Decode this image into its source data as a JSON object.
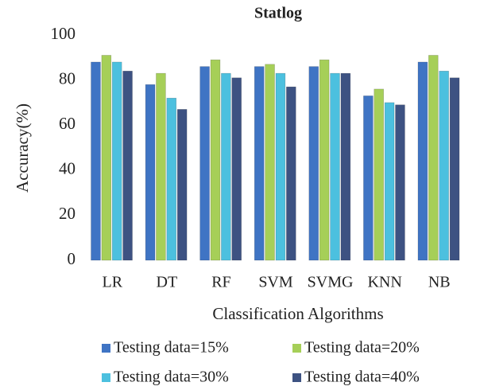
{
  "chart_data": {
    "type": "bar",
    "title": "Statlog",
    "x_label": "Classification Algorithms",
    "y_label": "Accuracy(%)",
    "categories": [
      "LR",
      "DT",
      "RF",
      "SVM",
      "SVMG",
      "KNN",
      "NB"
    ],
    "series": [
      {
        "name": "Testing data=15%",
        "color": "#3f74c4",
        "values": [
          88,
          78,
          86,
          86,
          86,
          73,
          88
        ]
      },
      {
        "name": "Testing data=20%",
        "color": "#a6cf58",
        "values": [
          91,
          83,
          89,
          87,
          89,
          76,
          91
        ]
      },
      {
        "name": "Testing data=30%",
        "color": "#4cc0df",
        "values": [
          88,
          72,
          83,
          83,
          83,
          70,
          84
        ]
      },
      {
        "name": "Testing data=40%",
        "color": "#3d5282",
        "values": [
          84,
          67,
          81,
          77,
          83,
          69,
          81
        ]
      }
    ],
    "ylim": [
      0,
      100
    ],
    "yticks": [
      0,
      20,
      40,
      60,
      80,
      100
    ],
    "grid": false
  }
}
